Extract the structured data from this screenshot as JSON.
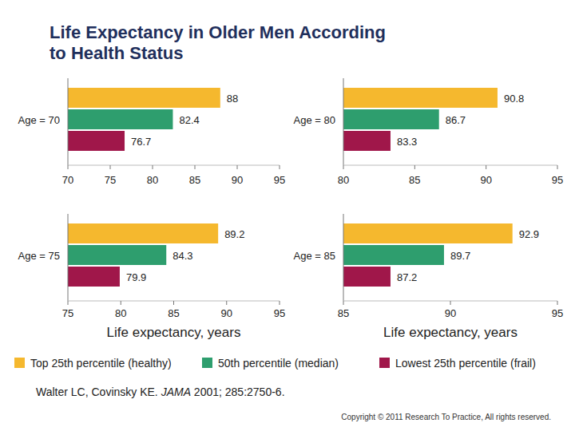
{
  "title": "Life Expectancy in Older Men According to Health Status",
  "legend_entries": [
    {
      "name": "Top 25th percentile (healthy)",
      "color": "#f5b82e"
    },
    {
      "name": "50th percentile (median)",
      "color": "#2e9e6e"
    },
    {
      "name": "Lowest 25th percentile (frail)",
      "color": "#a0174a"
    }
  ],
  "chart_data": [
    {
      "type": "bar",
      "orientation": "horizontal",
      "annotation": "Age = 70",
      "values": [
        88,
        82.4,
        76.7
      ],
      "xlim": [
        70,
        95
      ],
      "xticks": [
        70,
        75,
        80,
        85,
        90,
        95
      ],
      "data_labels": true
    },
    {
      "type": "bar",
      "orientation": "horizontal",
      "annotation": "Age = 80",
      "values": [
        90.8,
        86.7,
        83.3
      ],
      "xlim": [
        80,
        95
      ],
      "xticks": [
        80,
        85,
        90,
        95
      ],
      "data_labels": true
    },
    {
      "type": "bar",
      "orientation": "horizontal",
      "annotation": "Age = 75",
      "values": [
        89.2,
        84.3,
        79.9
      ],
      "xlim": [
        75,
        95
      ],
      "xticks": [
        75,
        80,
        85,
        90,
        95
      ],
      "data_labels": true,
      "x_label": "Life expectancy, years"
    },
    {
      "type": "bar",
      "orientation": "horizontal",
      "annotation": "Age = 85",
      "values": [
        92.9,
        89.7,
        87.2
      ],
      "xlim": [
        85,
        95
      ],
      "xticks": [
        85,
        90,
        95
      ],
      "data_labels": true,
      "x_label": "Life expectancy, years"
    }
  ],
  "source": "Walter LC, Covinsky KE. JAMA 2001; 285:2750-6.",
  "copyright": "Copyright © 2011 Research To Practice, All rights reserved."
}
